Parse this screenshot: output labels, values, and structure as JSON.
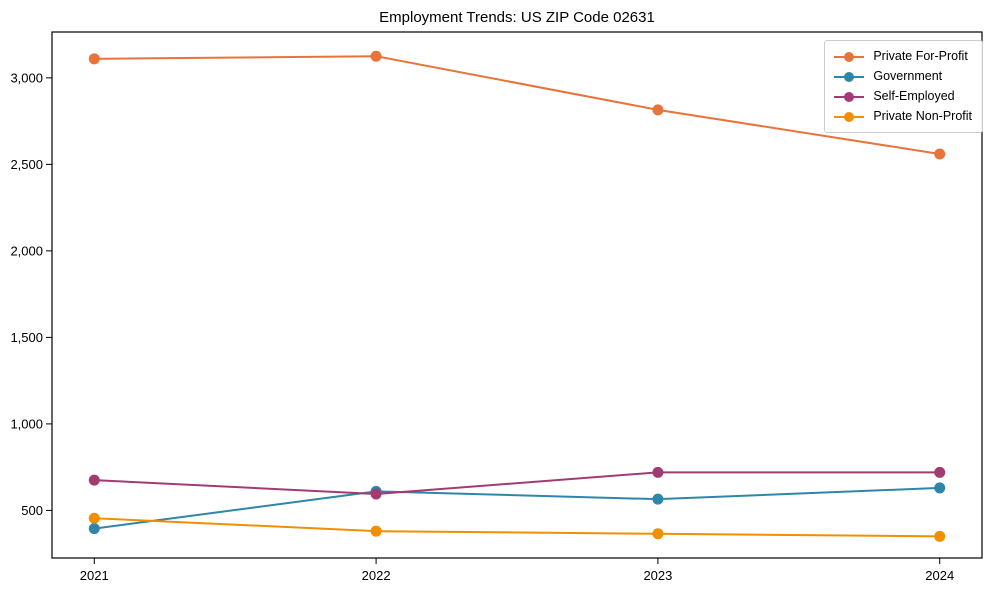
{
  "figure": {
    "background": "#ffffff",
    "axis_color": "#000000",
    "tick_label_color": "#000000"
  },
  "chart_data": {
    "type": "line",
    "title": "Employment Trends: US ZIP Code 02631",
    "xlabel": "",
    "ylabel": "",
    "x": [
      2021,
      2022,
      2023,
      2024
    ],
    "x_tick_labels": [
      "2021",
      "2022",
      "2023",
      "2024"
    ],
    "y_tick_labels": [
      "500",
      "1,000",
      "1,500",
      "2,000",
      "2,500",
      "3,000"
    ],
    "yticks": [
      500,
      1000,
      1500,
      2000,
      2500,
      3000
    ],
    "xlim": [
      2020.85,
      2024.15
    ],
    "ylim": [
      225,
      3265
    ],
    "grid": false,
    "legend_position": "upper right",
    "marker": "circle",
    "series": [
      {
        "name": "Private For-Profit",
        "color": "#e8743b",
        "values": [
          3110,
          3125,
          2815,
          2560
        ]
      },
      {
        "name": "Government",
        "color": "#2e86ab",
        "values": [
          395,
          610,
          565,
          630
        ]
      },
      {
        "name": "Self-Employed",
        "color": "#a23b72",
        "values": [
          675,
          595,
          720,
          720
        ]
      },
      {
        "name": "Private Non-Profit",
        "color": "#f18f01",
        "values": [
          455,
          380,
          365,
          350
        ]
      }
    ]
  }
}
